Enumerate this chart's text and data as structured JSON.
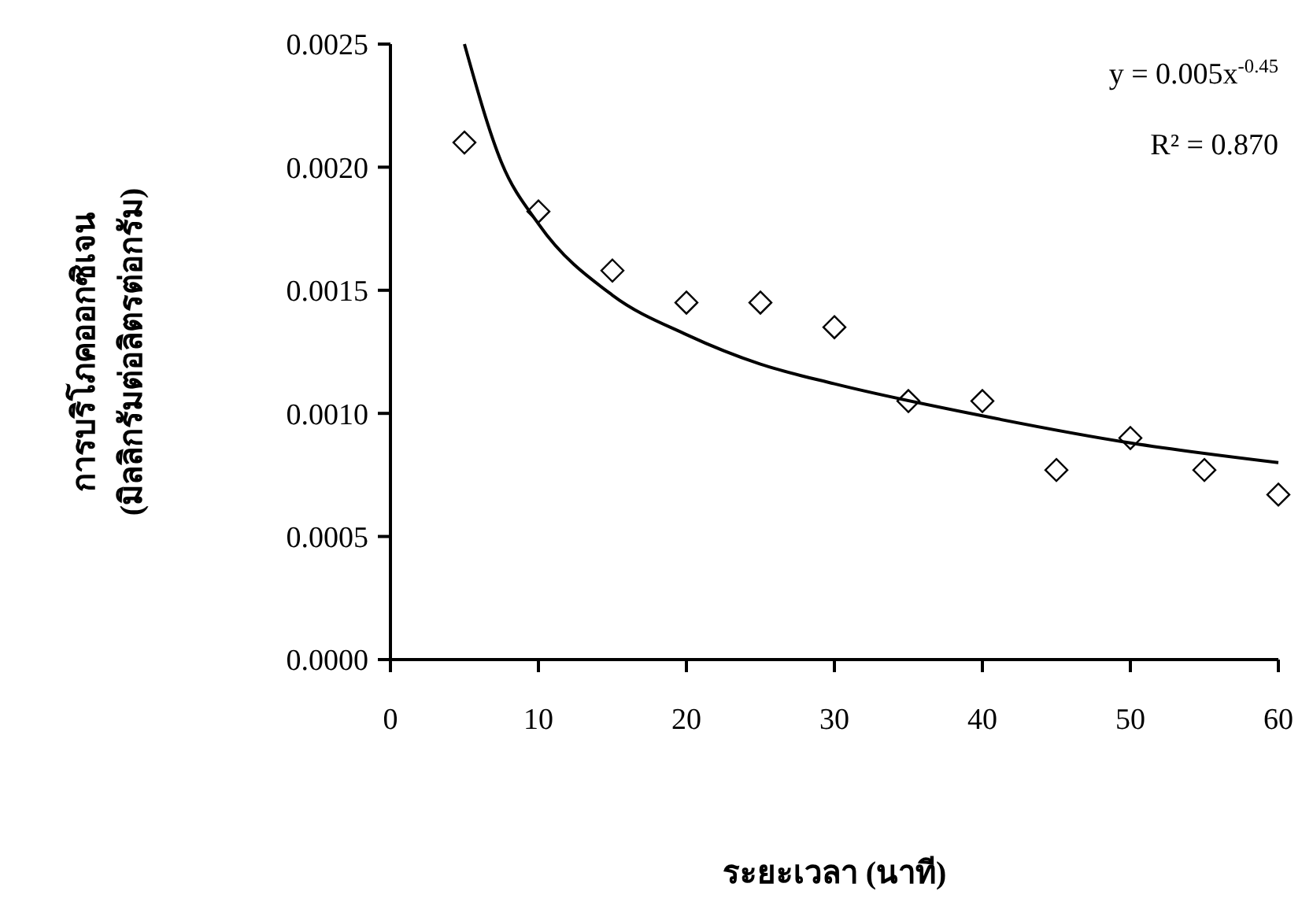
{
  "chart_data": {
    "type": "scatter",
    "xlabel": "ระยะเวลา (นาที)",
    "ylabel": "การบริโภคออกซิเจน\n(มิลลิกรัมต่อลิตรต่อกรัม)",
    "xlim": [
      0,
      60
    ],
    "xticks": [
      0,
      10,
      20,
      30,
      40,
      50,
      60
    ],
    "ylim": [
      0,
      0.0025
    ],
    "yticks": [
      {
        "value": 0,
        "label": "0.0000"
      },
      {
        "value": 0.0005,
        "label": "0.0005"
      },
      {
        "value": 0.001,
        "label": "0.0010"
      },
      {
        "value": 0.0015,
        "label": "0.0015"
      },
      {
        "value": 0.002,
        "label": "0.0020"
      },
      {
        "value": 0.0025,
        "label": "0.0025"
      }
    ],
    "grid": false,
    "annotations": [
      "y = 0.005x$^{-0.45}$",
      "R² = 0.870"
    ],
    "series": [
      {
        "marker": "diamond",
        "color": "#000000",
        "x": [
          5,
          10,
          15,
          20,
          25,
          30,
          35,
          40,
          45,
          50,
          55,
          60
        ],
        "values": [
          0.0021,
          0.00182,
          0.00158,
          0.00145,
          0.00145,
          0.00135,
          0.00105,
          0.00105,
          0.00077,
          0.0009,
          0.00077,
          0.00067
        ]
      },
      {
        "type": "line",
        "color": "#000000",
        "line_style": "solid",
        "x": [
          5,
          7.5,
          10,
          15,
          20,
          25,
          30,
          40,
          50,
          60
        ],
        "values": [
          0.0025,
          0.00202,
          0.00177,
          0.00148,
          0.00132,
          0.0012,
          0.00112,
          0.00099,
          0.00088,
          0.0008
        ]
      }
    ]
  }
}
